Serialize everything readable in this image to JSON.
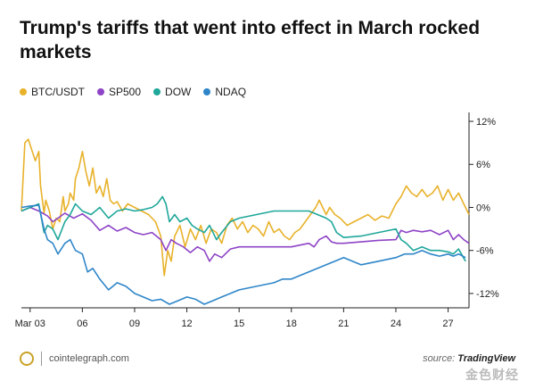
{
  "title": "Trump's tariffs that went into effect in March rocked markets",
  "source_prefix": "source:",
  "source_name": "TradingView",
  "site": "cointelegraph.com",
  "watermark": "金色财经",
  "chart_data": {
    "type": "line",
    "ylim": [
      -14,
      12.5
    ],
    "y_ticks": [
      12,
      6,
      0,
      -6,
      -12
    ],
    "y_tick_labels": [
      "12%",
      "6%",
      "0%",
      "-6%",
      "-12%"
    ],
    "x_range": [
      2.5,
      28.2
    ],
    "x_ticks": [
      3,
      6,
      9,
      12,
      15,
      18,
      21,
      24,
      27
    ],
    "x_tick_labels": [
      "Mar 03",
      "06",
      "09",
      "12",
      "15",
      "18",
      "21",
      "24",
      "27"
    ],
    "grid": false,
    "legend_position": "top-left",
    "series": [
      {
        "name": "BTC/USDT",
        "color": "#e8b22b",
        "x": [
          2.5,
          2.7,
          2.9,
          3.1,
          3.3,
          3.5,
          3.6,
          3.8,
          3.9,
          4.1,
          4.3,
          4.5,
          4.7,
          4.9,
          5.0,
          5.2,
          5.3,
          5.5,
          5.6,
          5.8,
          6.0,
          6.2,
          6.4,
          6.6,
          6.8,
          7.0,
          7.2,
          7.4,
          7.6,
          7.8,
          8.0,
          8.3,
          8.6,
          9.0,
          9.4,
          9.8,
          10.2,
          10.5,
          10.7,
          10.9,
          11.1,
          11.3,
          11.6,
          11.9,
          12.2,
          12.5,
          12.8,
          13.1,
          13.4,
          13.7,
          14.0,
          14.3,
          14.6,
          14.9,
          15.2,
          15.5,
          15.8,
          16.1,
          16.4,
          16.7,
          17.0,
          17.3,
          17.6,
          17.9,
          18.2,
          18.5,
          18.8,
          19.1,
          19.4,
          19.6,
          19.8,
          20.0,
          20.2,
          20.5,
          20.8,
          21.2,
          21.6,
          22.0,
          22.4,
          22.8,
          23.2,
          23.6,
          24.0,
          24.3,
          24.6,
          24.9,
          25.2,
          25.5,
          25.8,
          26.1,
          26.4,
          26.7,
          27.0,
          27.3,
          27.6,
          27.9,
          28.2
        ],
        "values": [
          -0.5,
          9.0,
          9.5,
          8.0,
          6.5,
          7.8,
          3.0,
          -0.8,
          1.0,
          -0.5,
          -3.0,
          -1.5,
          -2.0,
          1.5,
          -0.5,
          0.5,
          2.0,
          1.0,
          4.0,
          5.5,
          7.8,
          5.0,
          3.0,
          5.5,
          2.0,
          3.0,
          1.5,
          4.0,
          1.0,
          0.5,
          0.8,
          -0.5,
          0.5,
          0.0,
          -0.5,
          -1.0,
          -2.0,
          -4.0,
          -9.5,
          -6.0,
          -7.5,
          -4.0,
          -2.5,
          -5.5,
          -3.0,
          -4.5,
          -2.5,
          -5.0,
          -3.0,
          -3.5,
          -5.0,
          -2.5,
          -1.5,
          -3.0,
          -2.0,
          -3.5,
          -2.5,
          -3.0,
          -4.0,
          -2.0,
          -3.5,
          -3.0,
          -4.0,
          -4.5,
          -3.5,
          -3.0,
          -2.0,
          -1.0,
          0.0,
          1.0,
          0.0,
          -1.0,
          0.0,
          -1.0,
          -1.5,
          -2.5,
          -2.0,
          -1.5,
          -1.0,
          -1.8,
          -1.2,
          -1.5,
          0.5,
          1.5,
          3.0,
          2.0,
          1.5,
          2.5,
          1.5,
          2.0,
          3.0,
          1.0,
          2.5,
          1.0,
          2.0,
          0.5,
          -1.0
        ]
      },
      {
        "name": "SP500",
        "color": "#8e44c6",
        "x": [
          2.5,
          3.0,
          3.5,
          4.0,
          4.3,
          4.6,
          5.0,
          5.5,
          6.0,
          6.5,
          7.0,
          7.5,
          8.0,
          8.5,
          9.0,
          9.5,
          10.0,
          10.5,
          10.8,
          11.1,
          11.4,
          11.8,
          12.2,
          12.6,
          13.0,
          13.3,
          13.6,
          14.0,
          14.5,
          15.0,
          15.5,
          16.0,
          17.0,
          18.0,
          19.0,
          19.3,
          19.6,
          20.0,
          20.3,
          20.6,
          21.0,
          22.0,
          23.0,
          24.0,
          24.3,
          24.6,
          25.0,
          25.5,
          26.0,
          26.5,
          27.0,
          27.3,
          27.6,
          27.9,
          28.2
        ],
        "values": [
          -0.5,
          0.0,
          -0.5,
          -1.2,
          -2.0,
          -1.5,
          -0.8,
          -1.5,
          -0.9,
          -1.8,
          -3.2,
          -2.5,
          -3.3,
          -2.8,
          -3.5,
          -3.8,
          -3.5,
          -4.5,
          -6.0,
          -4.5,
          -5.0,
          -5.5,
          -6.3,
          -5.5,
          -6.0,
          -7.5,
          -6.5,
          -7.0,
          -5.8,
          -5.5,
          -5.5,
          -5.5,
          -5.5,
          -5.5,
          -5.0,
          -5.5,
          -4.5,
          -4.0,
          -4.8,
          -5.0,
          -5.0,
          -4.8,
          -4.6,
          -4.5,
          -3.2,
          -3.5,
          -3.2,
          -3.4,
          -3.2,
          -3.8,
          -3.2,
          -4.5,
          -3.8,
          -4.5,
          -5.0
        ]
      },
      {
        "name": "DOW",
        "color": "#1fa79a",
        "x": [
          2.5,
          3.0,
          3.5,
          3.8,
          4.0,
          4.3,
          4.6,
          5.0,
          5.3,
          5.6,
          6.0,
          6.5,
          7.0,
          7.5,
          8.0,
          8.5,
          9.0,
          9.5,
          10.0,
          10.3,
          10.6,
          10.8,
          11.0,
          11.3,
          11.6,
          12.0,
          12.3,
          12.6,
          13.0,
          13.3,
          13.7,
          14.0,
          14.5,
          15.0,
          16.0,
          17.0,
          18.0,
          19.0,
          19.5,
          20.0,
          20.3,
          20.6,
          21.0,
          22.0,
          23.0,
          24.0,
          24.3,
          24.6,
          25.0,
          25.5,
          26.0,
          26.5,
          27.0,
          27.3,
          27.6,
          28.0
        ],
        "values": [
          -0.5,
          0.0,
          0.5,
          -3.5,
          -2.5,
          -3.0,
          -4.5,
          -2.0,
          -1.0,
          0.5,
          -0.5,
          -1.0,
          0.0,
          -1.5,
          -0.5,
          -0.2,
          -0.5,
          -0.3,
          0.0,
          0.5,
          1.5,
          0.5,
          -2.0,
          -1.0,
          -2.0,
          -1.5,
          -2.5,
          -3.0,
          -3.5,
          -2.5,
          -4.5,
          -3.5,
          -2.0,
          -1.5,
          -1.0,
          -0.5,
          -0.5,
          -0.5,
          -1.0,
          -1.5,
          -2.0,
          -3.5,
          -4.2,
          -4.0,
          -3.5,
          -3.0,
          -4.5,
          -5.0,
          -6.0,
          -5.5,
          -6.0,
          -6.0,
          -6.2,
          -6.5,
          -5.8,
          -7.5
        ]
      },
      {
        "name": "NDAQ",
        "color": "#2e86c9",
        "x": [
          2.5,
          3.0,
          3.5,
          3.8,
          4.0,
          4.3,
          4.6,
          5.0,
          5.3,
          5.6,
          6.0,
          6.3,
          6.6,
          7.0,
          7.5,
          8.0,
          8.5,
          9.0,
          9.5,
          10.0,
          10.5,
          11.0,
          11.5,
          12.0,
          12.5,
          13.0,
          13.5,
          14.0,
          14.5,
          15.0,
          16.0,
          17.0,
          17.5,
          18.0,
          18.5,
          19.0,
          19.5,
          20.0,
          20.5,
          21.0,
          22.0,
          23.0,
          24.0,
          24.5,
          25.0,
          25.5,
          26.0,
          26.5,
          27.0,
          27.3,
          27.6,
          28.0
        ],
        "values": [
          0.0,
          0.2,
          0.3,
          -3.0,
          -4.5,
          -5.0,
          -6.5,
          -5.0,
          -4.5,
          -6.0,
          -6.5,
          -9.0,
          -8.5,
          -10.0,
          -11.5,
          -10.5,
          -11.0,
          -12.0,
          -12.5,
          -13.0,
          -12.8,
          -13.5,
          -13.0,
          -12.5,
          -12.8,
          -13.5,
          -13.0,
          -12.5,
          -12.0,
          -11.5,
          -11.0,
          -10.5,
          -10.0,
          -10.0,
          -9.5,
          -9.0,
          -8.5,
          -8.0,
          -7.5,
          -7.0,
          -8.0,
          -7.5,
          -7.0,
          -6.5,
          -6.5,
          -6.0,
          -6.5,
          -6.8,
          -6.5,
          -6.8,
          -6.5,
          -7.0
        ]
      }
    ]
  }
}
